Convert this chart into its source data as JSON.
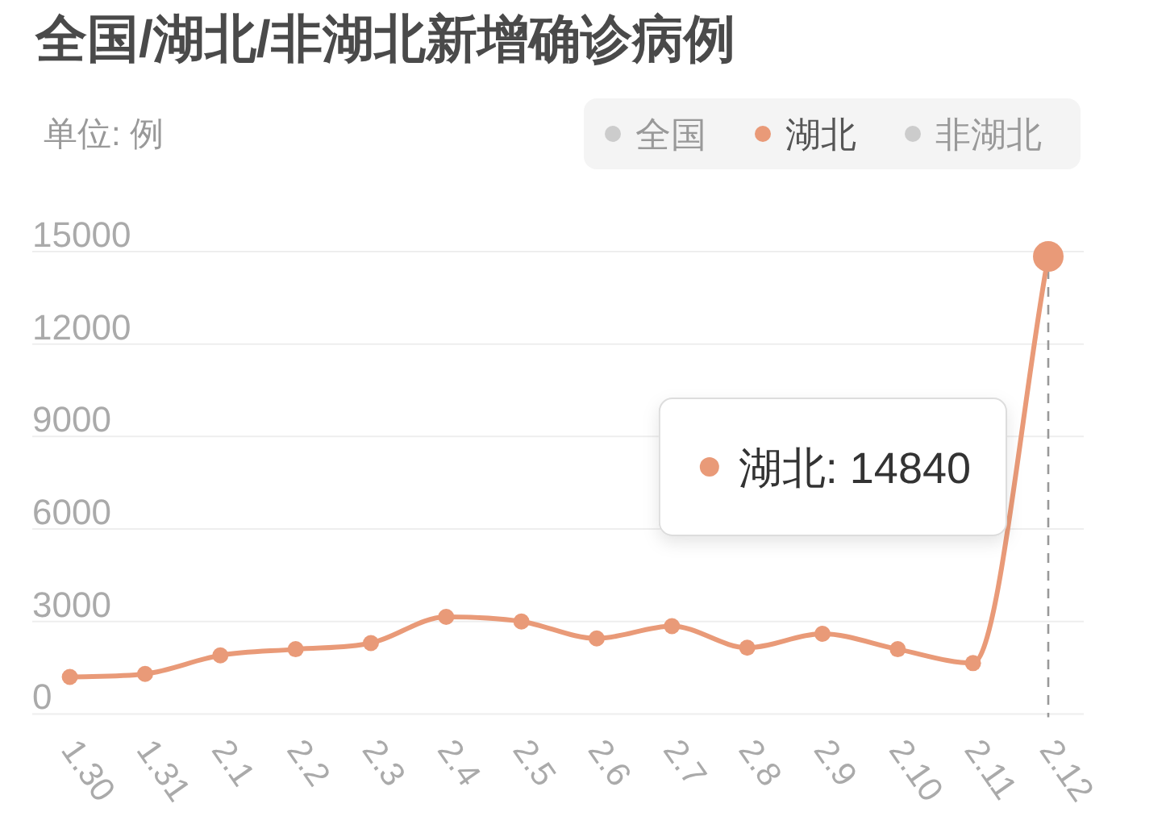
{
  "chart_data": {
    "type": "line",
    "title": "全国/湖北/非湖北新增确诊病例",
    "ylabel": "单位: 例",
    "categories": [
      "1.30",
      "1.31",
      "2.1",
      "2.2",
      "2.3",
      "2.4",
      "2.5",
      "2.6",
      "2.7",
      "2.8",
      "2.9",
      "2.10",
      "2.11",
      "2.12"
    ],
    "series": [
      {
        "name": "全国",
        "color": "#cccccc",
        "values": [
          null,
          null,
          null,
          null,
          null,
          null,
          null,
          null,
          null,
          null,
          null,
          null,
          null,
          null
        ]
      },
      {
        "name": "湖北",
        "color": "#e99a78",
        "values": [
          1200,
          1300,
          1900,
          2100,
          2300,
          3150,
          3000,
          2450,
          2850,
          2150,
          2600,
          2100,
          1650,
          14840
        ]
      },
      {
        "name": "非湖北",
        "color": "#cccccc",
        "values": [
          null,
          null,
          null,
          null,
          null,
          null,
          null,
          null,
          null,
          null,
          null,
          null,
          null,
          null
        ]
      }
    ],
    "ylim": [
      0,
      15000
    ],
    "yticks": [
      0,
      3000,
      6000,
      9000,
      12000,
      15000
    ],
    "grid": "y",
    "legend": "top right",
    "marker": "circle",
    "line_style": "solid",
    "annotations": [
      "湖北: 14840"
    ],
    "ref_lines": [
      {
        "axis": "x",
        "value": "2.12",
        "color": "#999999",
        "line_style": "dashed"
      }
    ]
  }
}
